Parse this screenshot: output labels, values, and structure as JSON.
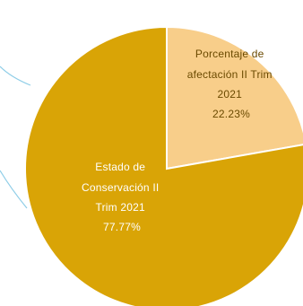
{
  "chart_data": {
    "type": "pie",
    "slices": [
      {
        "name": "Estado de Conservación II Trim 2021",
        "value": 77.77,
        "label_lines": [
          "Estado de",
          "Conservación II",
          "Trim 2021"
        ],
        "percent_label": "77.77%",
        "color": "#D9A406"
      },
      {
        "name": "Porcentaje de afectación II Trim 2021",
        "value": 22.23,
        "label_lines": [
          "Porcentaje de",
          "afectación II Trim",
          "2021"
        ],
        "percent_label": "22.23%",
        "color": "#F8CE8A"
      }
    ],
    "colors": {
      "edge": "#ffffff",
      "leader_line": "#8ECDE7"
    }
  }
}
